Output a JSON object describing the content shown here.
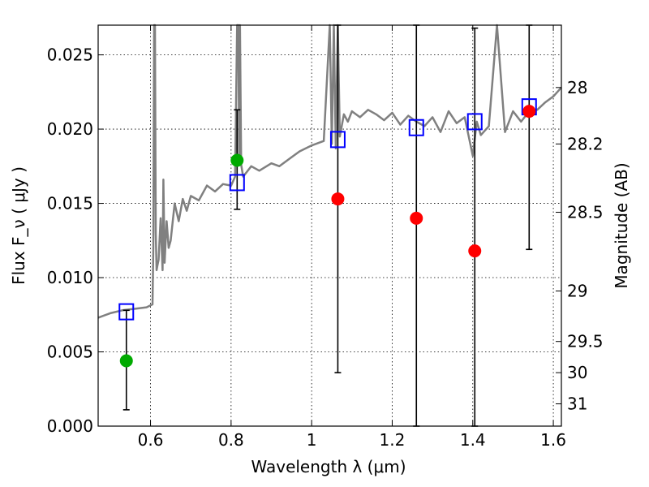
{
  "chart_data": {
    "type": "scatter",
    "xlabel": "Wavelength  λ (μm)",
    "ylabel": "Flux  F_ν  ( μJy )",
    "ylabel_right": "Magnitude (AB)",
    "xlim": [
      0.47,
      1.62
    ],
    "ylim": [
      0.0,
      0.027
    ],
    "grid": true,
    "x_ticks": [
      0.6,
      0.8,
      1.0,
      1.2,
      1.4,
      1.6
    ],
    "x_tick_labels": [
      "0.6",
      "0.8",
      "1",
      "1.2",
      "1.4",
      "1.6"
    ],
    "y_ticks": [
      0.0,
      0.005,
      0.01,
      0.015,
      0.02,
      0.025
    ],
    "y_tick_labels": [
      "0.000",
      "0.005",
      "0.010",
      "0.015",
      "0.020",
      "0.025"
    ],
    "right_ticks": [
      {
        "flux": 0.0228,
        "label": "28"
      },
      {
        "flux": 0.019,
        "label": "28.2"
      },
      {
        "flux": 0.0144,
        "label": "28.5"
      },
      {
        "flux": 0.0091,
        "label": "29"
      },
      {
        "flux": 0.0057,
        "label": "29.5"
      },
      {
        "flux": 0.0036,
        "label": "30"
      },
      {
        "flux": 0.0015,
        "label": "31"
      }
    ],
    "series": [
      {
        "kind": "spectrum",
        "color": "#808080",
        "x": [
          0.47,
          0.5,
          0.53,
          0.56,
          0.59,
          0.605,
          0.607,
          0.609,
          0.611,
          0.613,
          0.615,
          0.617,
          0.62,
          0.625,
          0.63,
          0.632,
          0.635,
          0.64,
          0.645,
          0.65,
          0.66,
          0.67,
          0.68,
          0.69,
          0.7,
          0.72,
          0.74,
          0.76,
          0.78,
          0.8,
          0.81,
          0.815,
          0.818,
          0.82,
          0.822,
          0.825,
          0.83,
          0.85,
          0.87,
          0.9,
          0.92,
          0.95,
          0.97,
          1.0,
          1.03,
          1.045,
          1.05,
          1.055,
          1.06,
          1.065,
          1.07,
          1.08,
          1.09,
          1.1,
          1.12,
          1.14,
          1.16,
          1.18,
          1.2,
          1.22,
          1.24,
          1.26,
          1.28,
          1.3,
          1.32,
          1.34,
          1.36,
          1.38,
          1.4,
          1.41,
          1.42,
          1.44,
          1.46,
          1.48,
          1.5,
          1.52,
          1.54,
          1.56,
          1.58,
          1.6,
          1.62
        ],
        "y": [
          0.0073,
          0.0076,
          0.0078,
          0.0079,
          0.008,
          0.0082,
          0.012,
          0.027,
          0.027,
          0.013,
          0.0105,
          0.0108,
          0.0112,
          0.014,
          0.0105,
          0.0166,
          0.011,
          0.0138,
          0.012,
          0.0125,
          0.015,
          0.0138,
          0.0153,
          0.0145,
          0.0155,
          0.0152,
          0.0162,
          0.0158,
          0.0163,
          0.0162,
          0.0168,
          0.027,
          0.027,
          0.0178,
          0.027,
          0.0176,
          0.0168,
          0.0175,
          0.0172,
          0.0177,
          0.0175,
          0.0181,
          0.0185,
          0.0189,
          0.0192,
          0.027,
          0.019,
          0.027,
          0.0187,
          0.027,
          0.0195,
          0.021,
          0.0205,
          0.0212,
          0.0208,
          0.0213,
          0.021,
          0.0206,
          0.0211,
          0.0203,
          0.0209,
          0.0205,
          0.0202,
          0.0208,
          0.0198,
          0.0212,
          0.0204,
          0.0208,
          0.0182,
          0.0205,
          0.0196,
          0.0202,
          0.027,
          0.0198,
          0.0212,
          0.0205,
          0.0212,
          0.0213,
          0.0218,
          0.0222,
          0.0228
        ]
      },
      {
        "kind": "model-photometry",
        "marker": "open-square",
        "color": "#0000ff",
        "x": [
          0.54,
          0.815,
          1.065,
          1.26,
          1.405,
          1.54
        ],
        "y": [
          0.0077,
          0.0164,
          0.0193,
          0.0201,
          0.0205,
          0.0215
        ]
      },
      {
        "kind": "detections",
        "marker": "filled-circle",
        "color": "#00aa00",
        "x": [
          0.54,
          0.815
        ],
        "y": [
          0.0044,
          0.0179
        ],
        "err_low": [
          0.0033,
          0.0033
        ],
        "err_high": [
          0.0034,
          0.0034
        ]
      },
      {
        "kind": "low-significance",
        "marker": "filled-circle",
        "color": "#ff0000",
        "x": [
          1.065,
          1.26,
          1.405,
          1.54
        ],
        "y": [
          0.0153,
          0.014,
          0.0118,
          0.0212
        ],
        "err_low": [
          0.0117,
          0.014,
          0.0118,
          0.0093
        ],
        "err_high": [
          0.0117,
          0.013,
          0.015,
          0.0058
        ]
      }
    ]
  }
}
